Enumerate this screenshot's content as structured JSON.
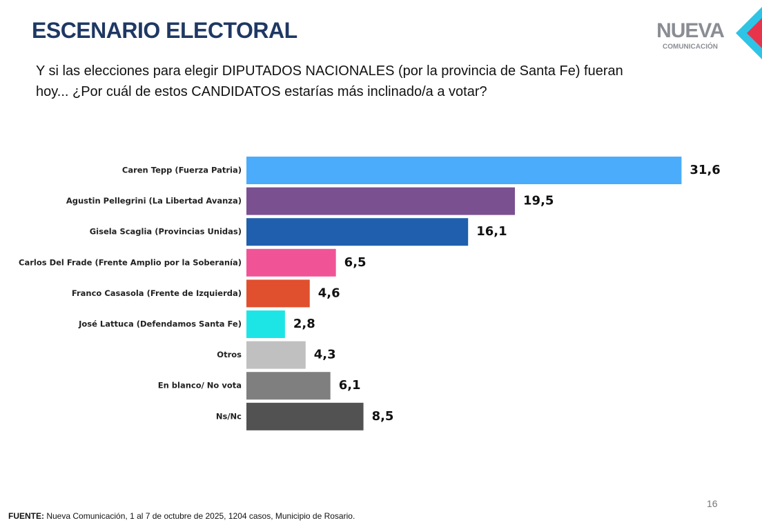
{
  "chart_data": {
    "type": "bar",
    "orientation": "horizontal",
    "title": "ESCENARIO ELECTORAL",
    "subtitle": "Y si las elecciones para elegir DIPUTADOS NACIONALES (por la provincia de Santa Fe) fueran hoy... ¿Por cuál de estos CANDIDATOS estarías más inclinado/a a votar?",
    "categories": [
      "Caren Tepp (Fuerza Patria)",
      "Agustin Pellegrini (La Libertad Avanza)",
      "Gisela Scaglia (Provincias Unidas)",
      "Carlos Del Frade (Frente Amplio por la Soberanía)",
      "Franco Casasola (Frente de Izquierda)",
      "José Lattuca (Defendamos Santa Fe)",
      "Otros",
      "En blanco/ No vota",
      "Ns/Nc"
    ],
    "values": [
      31.6,
      19.5,
      16.1,
      6.5,
      4.6,
      2.8,
      4.3,
      6.1,
      8.5
    ],
    "value_labels": [
      "31,6",
      "19,5",
      "16,1",
      "6,5",
      "4,6",
      "2,8",
      "4,3",
      "6,1",
      "8,5"
    ],
    "colors": [
      "#4aacfb",
      "#7a5090",
      "#1f5fad",
      "#f05497",
      "#e0502e",
      "#1ee5e5",
      "#c0c0c0",
      "#7f7f7f",
      "#525252"
    ]
  },
  "logo": {
    "name": "NUEVA",
    "tagline": "COMUNICACIÓN"
  },
  "page_number": "16",
  "source_label": "FUENTE:",
  "source": "Nueva Comunicación, 1 al 7 de octubre de 2025, 1204 casos, Municipio de Rosario."
}
